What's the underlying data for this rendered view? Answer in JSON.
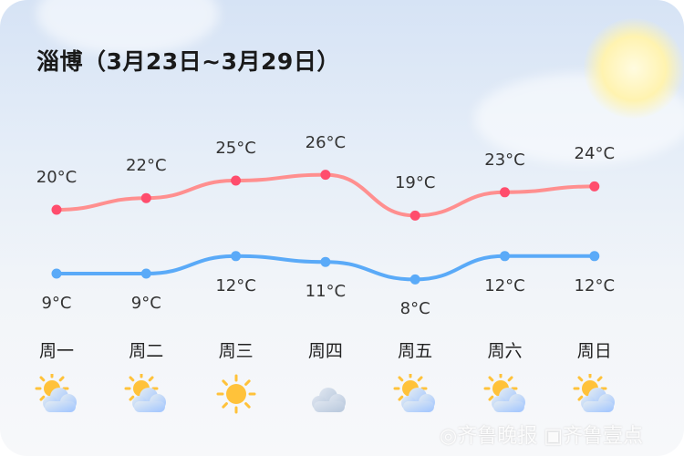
{
  "title": "淄博（3月23日~3月29日）",
  "watermark": "齐鲁晚报 齐鲁壹点",
  "chart_data": {
    "type": "line",
    "categories": [
      "周一",
      "周二",
      "周三",
      "周四",
      "周五",
      "周六",
      "周日"
    ],
    "series": [
      {
        "key": "high",
        "values": [
          20,
          22,
          25,
          26,
          19,
          23,
          24
        ],
        "color": "#ff8f8f",
        "point_color": "#ff4d6d"
      },
      {
        "key": "low",
        "values": [
          9,
          9,
          12,
          11,
          8,
          12,
          12
        ],
        "color": "#5aaaf8",
        "point_color": "#5aaaf8"
      }
    ],
    "labels_high": [
      "20°C",
      "22°C",
      "25°C",
      "26°C",
      "19°C",
      "23°C",
      "24°C"
    ],
    "labels_low": [
      "9°C",
      "9°C",
      "12°C",
      "11°C",
      "8°C",
      "12°C",
      "12°C"
    ],
    "unit": "°C",
    "weather_icons": [
      "partly-cloudy-icon",
      "partly-cloudy-icon",
      "sunny-icon",
      "cloudy-icon",
      "partly-cloudy-icon",
      "partly-cloudy-icon",
      "partly-cloudy-icon"
    ]
  }
}
